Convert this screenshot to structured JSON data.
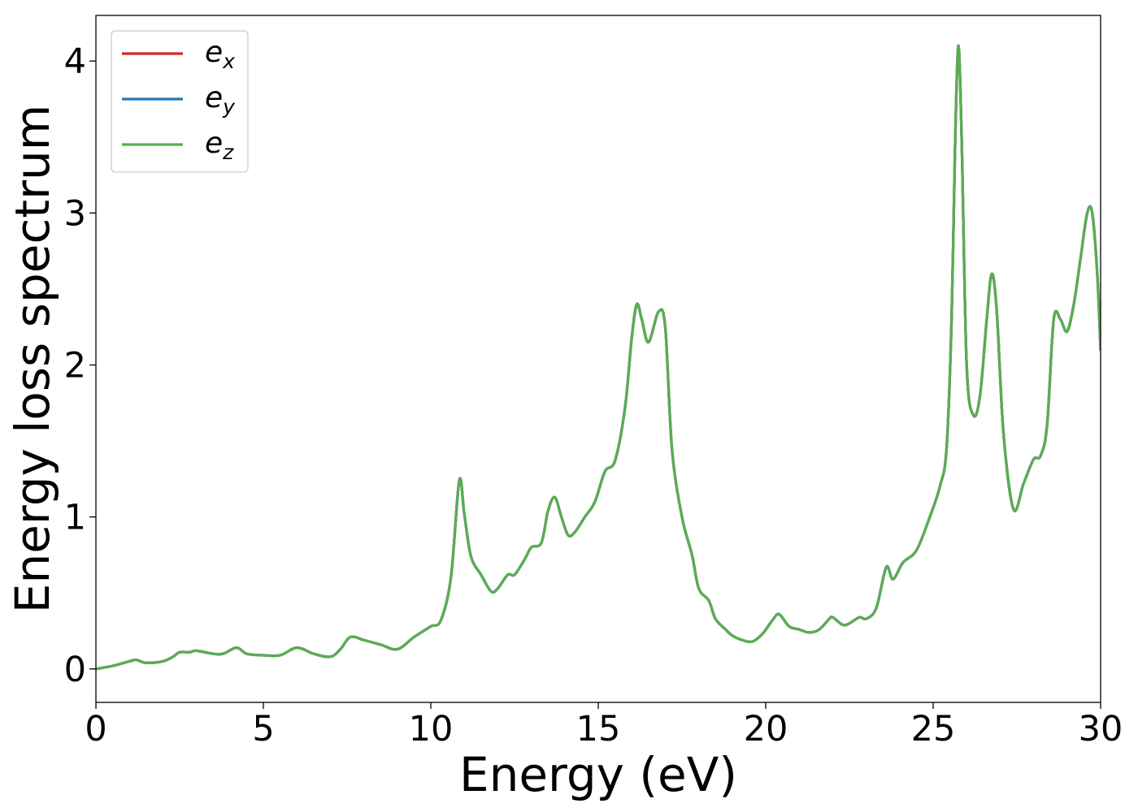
{
  "chart_data": {
    "type": "line",
    "title": "",
    "xlabel": "Energy (eV)",
    "ylabel": "Energy loss spectrum",
    "xlim": [
      0,
      30
    ],
    "ylim": [
      -0.22,
      4.3
    ],
    "xticks": [
      0,
      5,
      10,
      15,
      20,
      25,
      30
    ],
    "xtick_labels": [
      "0",
      "5",
      "10",
      "15",
      "20",
      "25",
      "30"
    ],
    "yticks": [
      0,
      1,
      2,
      3,
      4
    ],
    "ytick_labels": [
      "0",
      "1",
      "2",
      "3",
      "4"
    ],
    "grid": false,
    "legend_position": "top-left",
    "x": [
      0,
      0.5,
      1.0,
      1.2,
      1.5,
      2.0,
      2.3,
      2.5,
      2.8,
      3.0,
      3.5,
      3.8,
      4.2,
      4.5,
      5.0,
      5.5,
      6.0,
      6.5,
      7.0,
      7.3,
      7.6,
      8.0,
      8.5,
      9.0,
      9.5,
      10.0,
      10.3,
      10.6,
      10.85,
      11.0,
      11.2,
      11.5,
      11.8,
      12.0,
      12.3,
      12.5,
      12.8,
      13.0,
      13.3,
      13.5,
      13.7,
      13.9,
      14.1,
      14.3,
      14.6,
      14.9,
      15.2,
      15.5,
      15.8,
      16.0,
      16.15,
      16.3,
      16.5,
      16.8,
      17.0,
      17.2,
      17.5,
      17.8,
      18.0,
      18.3,
      18.5,
      18.8,
      19.0,
      19.3,
      19.6,
      19.9,
      20.2,
      20.4,
      20.7,
      21.0,
      21.3,
      21.6,
      21.9,
      22.0,
      22.3,
      22.5,
      22.8,
      23.0,
      23.3,
      23.6,
      23.8,
      24.1,
      24.5,
      24.9,
      25.2,
      25.4,
      25.55,
      25.65,
      25.75,
      25.85,
      26.0,
      26.2,
      26.4,
      26.6,
      26.75,
      26.9,
      27.1,
      27.4,
      27.7,
      28.0,
      28.2,
      28.4,
      28.6,
      28.8,
      29.0,
      29.2,
      29.4,
      29.6,
      29.75,
      29.9,
      30.0
    ],
    "series": [
      {
        "name": "e_x",
        "label_base": "e",
        "label_sub": "x",
        "color": "#d62728",
        "values": [
          0.0,
          0.02,
          0.05,
          0.06,
          0.04,
          0.05,
          0.08,
          0.11,
          0.11,
          0.12,
          0.1,
          0.1,
          0.14,
          0.1,
          0.09,
          0.09,
          0.14,
          0.1,
          0.08,
          0.13,
          0.21,
          0.19,
          0.16,
          0.13,
          0.21,
          0.28,
          0.32,
          0.6,
          1.24,
          1.02,
          0.74,
          0.62,
          0.51,
          0.53,
          0.62,
          0.62,
          0.72,
          0.8,
          0.83,
          1.04,
          1.13,
          1.0,
          0.88,
          0.9,
          1.0,
          1.1,
          1.3,
          1.37,
          1.72,
          2.18,
          2.4,
          2.3,
          2.15,
          2.35,
          2.25,
          1.45,
          1.0,
          0.75,
          0.53,
          0.45,
          0.33,
          0.26,
          0.22,
          0.19,
          0.18,
          0.23,
          0.32,
          0.36,
          0.28,
          0.26,
          0.24,
          0.26,
          0.33,
          0.34,
          0.29,
          0.3,
          0.34,
          0.33,
          0.4,
          0.67,
          0.59,
          0.7,
          0.78,
          1.0,
          1.2,
          1.45,
          2.3,
          3.4,
          4.1,
          3.5,
          2.0,
          1.67,
          1.8,
          2.3,
          2.6,
          2.35,
          1.55,
          1.05,
          1.22,
          1.38,
          1.4,
          1.6,
          2.3,
          2.3,
          2.22,
          2.4,
          2.7,
          3.0,
          3.0,
          2.6,
          2.1
        ]
      },
      {
        "name": "e_y",
        "label_base": "e",
        "label_sub": "y",
        "color": "#1f77b4",
        "values": [
          0.0,
          0.02,
          0.05,
          0.06,
          0.04,
          0.05,
          0.08,
          0.11,
          0.11,
          0.12,
          0.1,
          0.1,
          0.14,
          0.1,
          0.09,
          0.09,
          0.14,
          0.1,
          0.08,
          0.13,
          0.21,
          0.19,
          0.16,
          0.13,
          0.21,
          0.28,
          0.32,
          0.6,
          1.24,
          1.02,
          0.74,
          0.62,
          0.51,
          0.53,
          0.62,
          0.62,
          0.72,
          0.8,
          0.83,
          1.04,
          1.13,
          1.0,
          0.88,
          0.9,
          1.0,
          1.1,
          1.3,
          1.37,
          1.72,
          2.18,
          2.4,
          2.3,
          2.15,
          2.35,
          2.25,
          1.45,
          1.0,
          0.75,
          0.53,
          0.45,
          0.33,
          0.26,
          0.22,
          0.19,
          0.18,
          0.23,
          0.32,
          0.36,
          0.28,
          0.26,
          0.24,
          0.26,
          0.33,
          0.34,
          0.29,
          0.3,
          0.34,
          0.33,
          0.4,
          0.67,
          0.59,
          0.7,
          0.78,
          1.0,
          1.2,
          1.45,
          2.3,
          3.4,
          4.1,
          3.5,
          2.0,
          1.67,
          1.8,
          2.3,
          2.6,
          2.35,
          1.55,
          1.05,
          1.22,
          1.38,
          1.4,
          1.6,
          2.3,
          2.3,
          2.22,
          2.4,
          2.7,
          3.0,
          3.0,
          2.6,
          2.1
        ]
      },
      {
        "name": "e_z",
        "label_base": "e",
        "label_sub": "z",
        "color": "#5aad52",
        "values": [
          0.0,
          0.02,
          0.05,
          0.06,
          0.04,
          0.05,
          0.08,
          0.11,
          0.11,
          0.12,
          0.1,
          0.1,
          0.14,
          0.1,
          0.09,
          0.09,
          0.14,
          0.1,
          0.08,
          0.13,
          0.21,
          0.19,
          0.16,
          0.13,
          0.21,
          0.28,
          0.32,
          0.6,
          1.24,
          1.02,
          0.74,
          0.62,
          0.51,
          0.53,
          0.62,
          0.62,
          0.72,
          0.8,
          0.83,
          1.04,
          1.13,
          1.0,
          0.88,
          0.9,
          1.0,
          1.1,
          1.3,
          1.37,
          1.72,
          2.18,
          2.4,
          2.3,
          2.15,
          2.35,
          2.25,
          1.45,
          1.0,
          0.75,
          0.53,
          0.45,
          0.33,
          0.26,
          0.22,
          0.19,
          0.18,
          0.23,
          0.32,
          0.36,
          0.28,
          0.26,
          0.24,
          0.26,
          0.33,
          0.34,
          0.29,
          0.3,
          0.34,
          0.33,
          0.4,
          0.67,
          0.59,
          0.7,
          0.78,
          1.0,
          1.2,
          1.45,
          2.3,
          3.4,
          4.1,
          3.5,
          2.0,
          1.67,
          1.8,
          2.3,
          2.6,
          2.35,
          1.55,
          1.05,
          1.22,
          1.38,
          1.4,
          1.6,
          2.3,
          2.3,
          2.22,
          2.4,
          2.7,
          3.0,
          3.0,
          2.6,
          2.1
        ]
      }
    ]
  }
}
